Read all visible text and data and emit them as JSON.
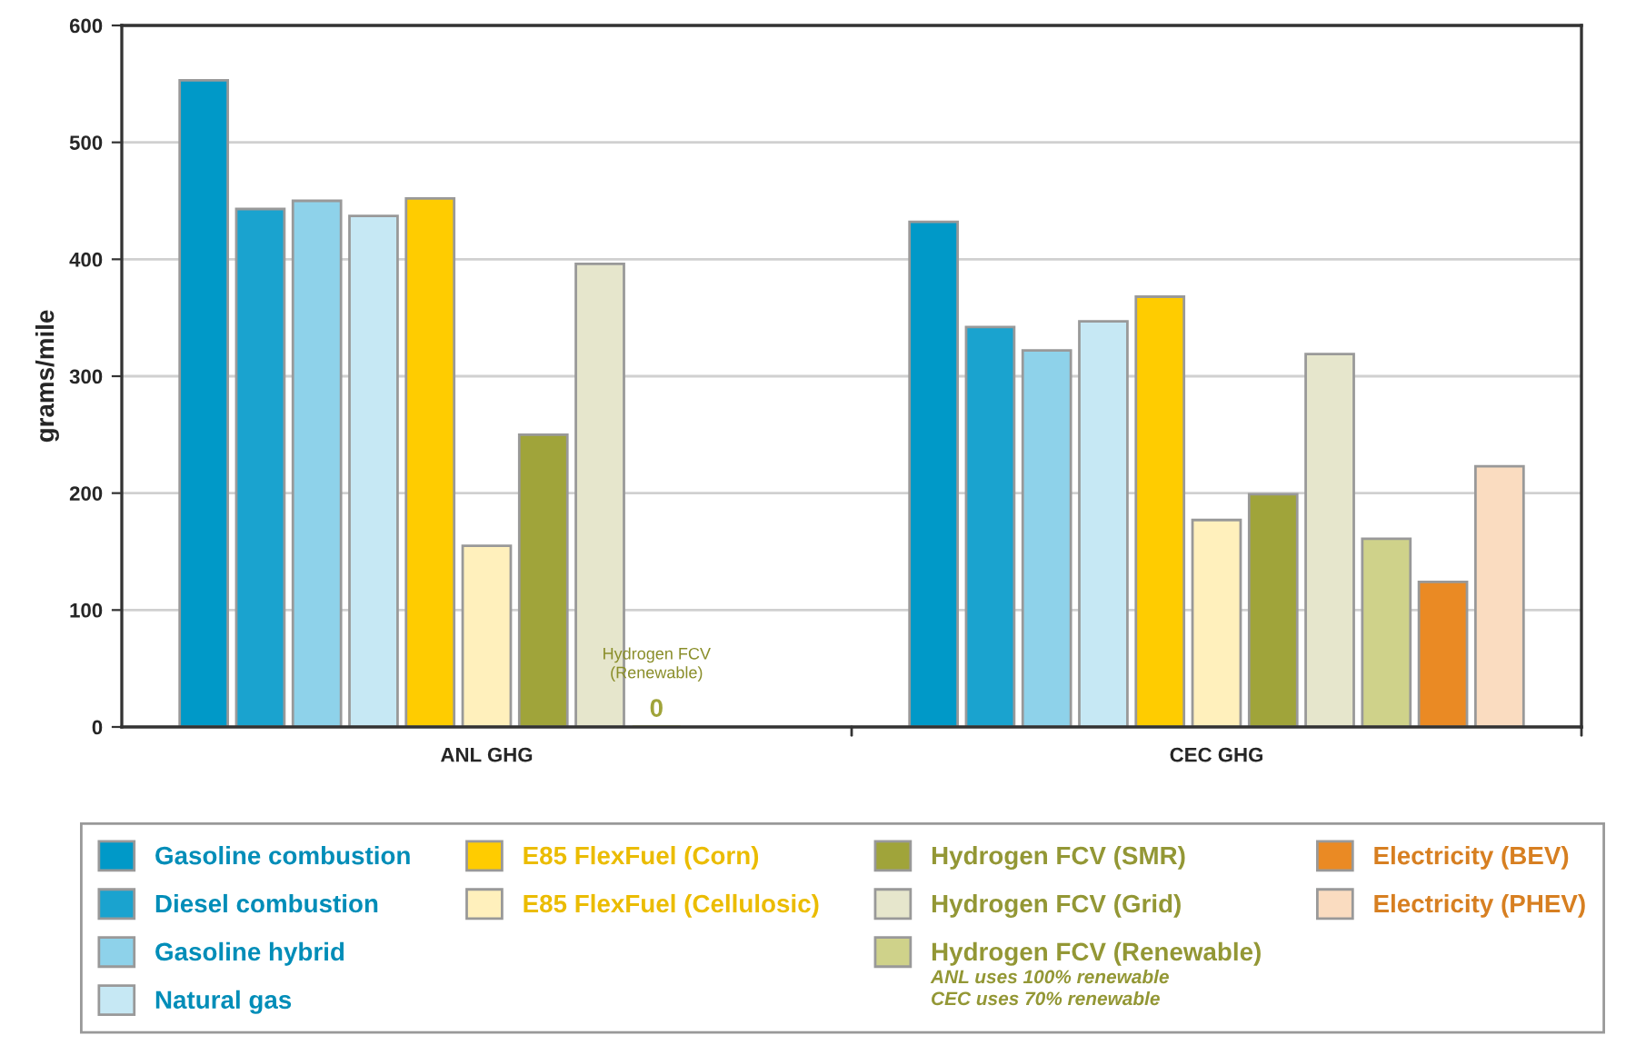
{
  "chart_data": {
    "type": "bar",
    "ylabel": "grams/mile",
    "categories": [
      "ANL GHG",
      "CEC GHG"
    ],
    "series": [
      {
        "name": "Gasoline combustion",
        "color": "#0099c8",
        "values": [
          553,
          432
        ]
      },
      {
        "name": "Diesel combustion",
        "color": "#1aa3cf",
        "values": [
          443,
          342
        ]
      },
      {
        "name": "Gasoline hybrid",
        "color": "#8ed2ea",
        "values": [
          450,
          322
        ]
      },
      {
        "name": "Natural gas",
        "color": "#c6e8f4",
        "values": [
          437,
          347
        ]
      },
      {
        "name": "E85 FlexFuel (Corn)",
        "color": "#ffcc00",
        "values": [
          452,
          368
        ]
      },
      {
        "name": "E85 FlexFuel (Cellulosic)",
        "color": "#fff0bc",
        "values": [
          155,
          177
        ]
      },
      {
        "name": "Hydrogen FCV (SMR)",
        "color": "#a0a43a",
        "values": [
          250,
          199
        ]
      },
      {
        "name": "Hydrogen FCV (Grid)",
        "color": "#e6e6cc",
        "values": [
          396,
          319
        ]
      },
      {
        "name": "Hydrogen FCV (Renewable)",
        "color": "#cfd28a",
        "values": [
          0,
          161
        ],
        "value_labels": [
          "0",
          null
        ]
      },
      {
        "name": "Electricity (BEV)",
        "color": "#ea8a24",
        "values": [
          null,
          124
        ]
      },
      {
        "name": "Electricity (PHEV)",
        "color": "#fadcc0",
        "values": [
          null,
          223
        ]
      }
    ],
    "ylim": [
      0,
      600
    ],
    "yticks": [
      0,
      100,
      200,
      300,
      400,
      500,
      600
    ],
    "grid": "y",
    "legend": "bottom",
    "annotations": [
      "Hydrogen FCV\n(Renewable)",
      "ANL uses 100% renewable\nCEC uses 70% renewable"
    ]
  }
}
